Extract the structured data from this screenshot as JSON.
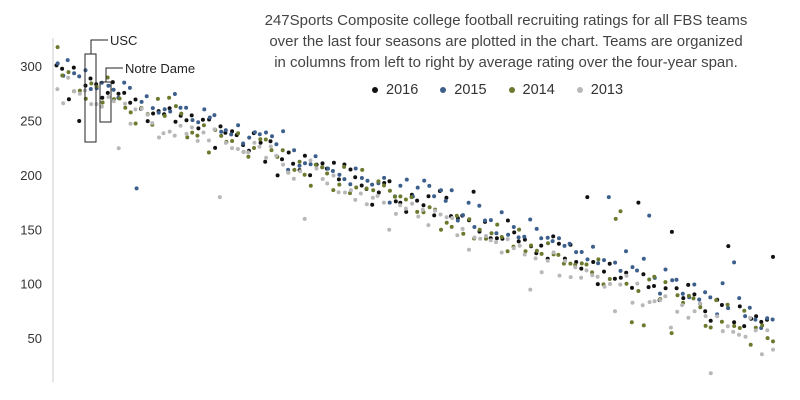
{
  "chart_data": {
    "type": "scatter",
    "title": "",
    "description_lines": [
      "247Sports Composite college football recruiting ratings for all FBS teams",
      "over the last four seasons are plotted in the chart. Teams are organized",
      "in columns from left to right by average rating over the four-year span."
    ],
    "xlabel": "",
    "ylabel": "",
    "ylim": [
      10,
      330
    ],
    "yticks": [
      50,
      100,
      150,
      200,
      250,
      300
    ],
    "grid": false,
    "legend": "top",
    "annotations": [
      {
        "label": "USC",
        "team_rank": 3
      },
      {
        "label": "Notre Dame",
        "team_rank": 5
      }
    ],
    "series": [
      {
        "name": "2016",
        "color": "#111111",
        "trend": [
          292,
          60
        ],
        "points": [
          [
            3,
            270
          ],
          [
            5,
            250
          ],
          [
            30,
            245
          ],
          [
            40,
            200
          ],
          [
            52,
            210
          ],
          [
            75,
            185
          ],
          [
            95,
            180
          ],
          [
            104,
            175
          ],
          [
            110,
            148
          ],
          [
            120,
            135
          ],
          [
            128,
            125
          ]
        ]
      },
      {
        "name": "2015",
        "color": "#3d5f8c",
        "trend": [
          298,
          70
        ],
        "points": [
          [
            1,
            303
          ],
          [
            3,
            306
          ],
          [
            5,
            291
          ],
          [
            15,
            188
          ],
          [
            42,
            205
          ],
          [
            60,
            175
          ],
          [
            99,
            180
          ],
          [
            106,
            163
          ],
          [
            121,
            120
          ]
        ]
      },
      {
        "name": "2014",
        "color": "#6b7a2e",
        "trend": [
          290,
          55
        ],
        "points": [
          [
            1,
            318
          ],
          [
            3,
            295
          ],
          [
            5,
            278
          ],
          [
            40,
            217
          ],
          [
            55,
            205
          ],
          [
            100,
            160
          ],
          [
            101,
            167
          ],
          [
            103,
            65
          ],
          [
            105,
            62
          ],
          [
            110,
            55
          ],
          [
            126,
            62
          ]
        ]
      },
      {
        "name": "2013",
        "color": "#b8b8b8",
        "trend": [
          282,
          48
        ],
        "points": [
          [
            5,
            275
          ],
          [
            12,
            225
          ],
          [
            30,
            180
          ],
          [
            45,
            160
          ],
          [
            60,
            150
          ],
          [
            72,
            145
          ],
          [
            85,
            95
          ],
          [
            100,
            75
          ],
          [
            110,
            60
          ],
          [
            117,
            18
          ]
        ]
      }
    ]
  }
}
